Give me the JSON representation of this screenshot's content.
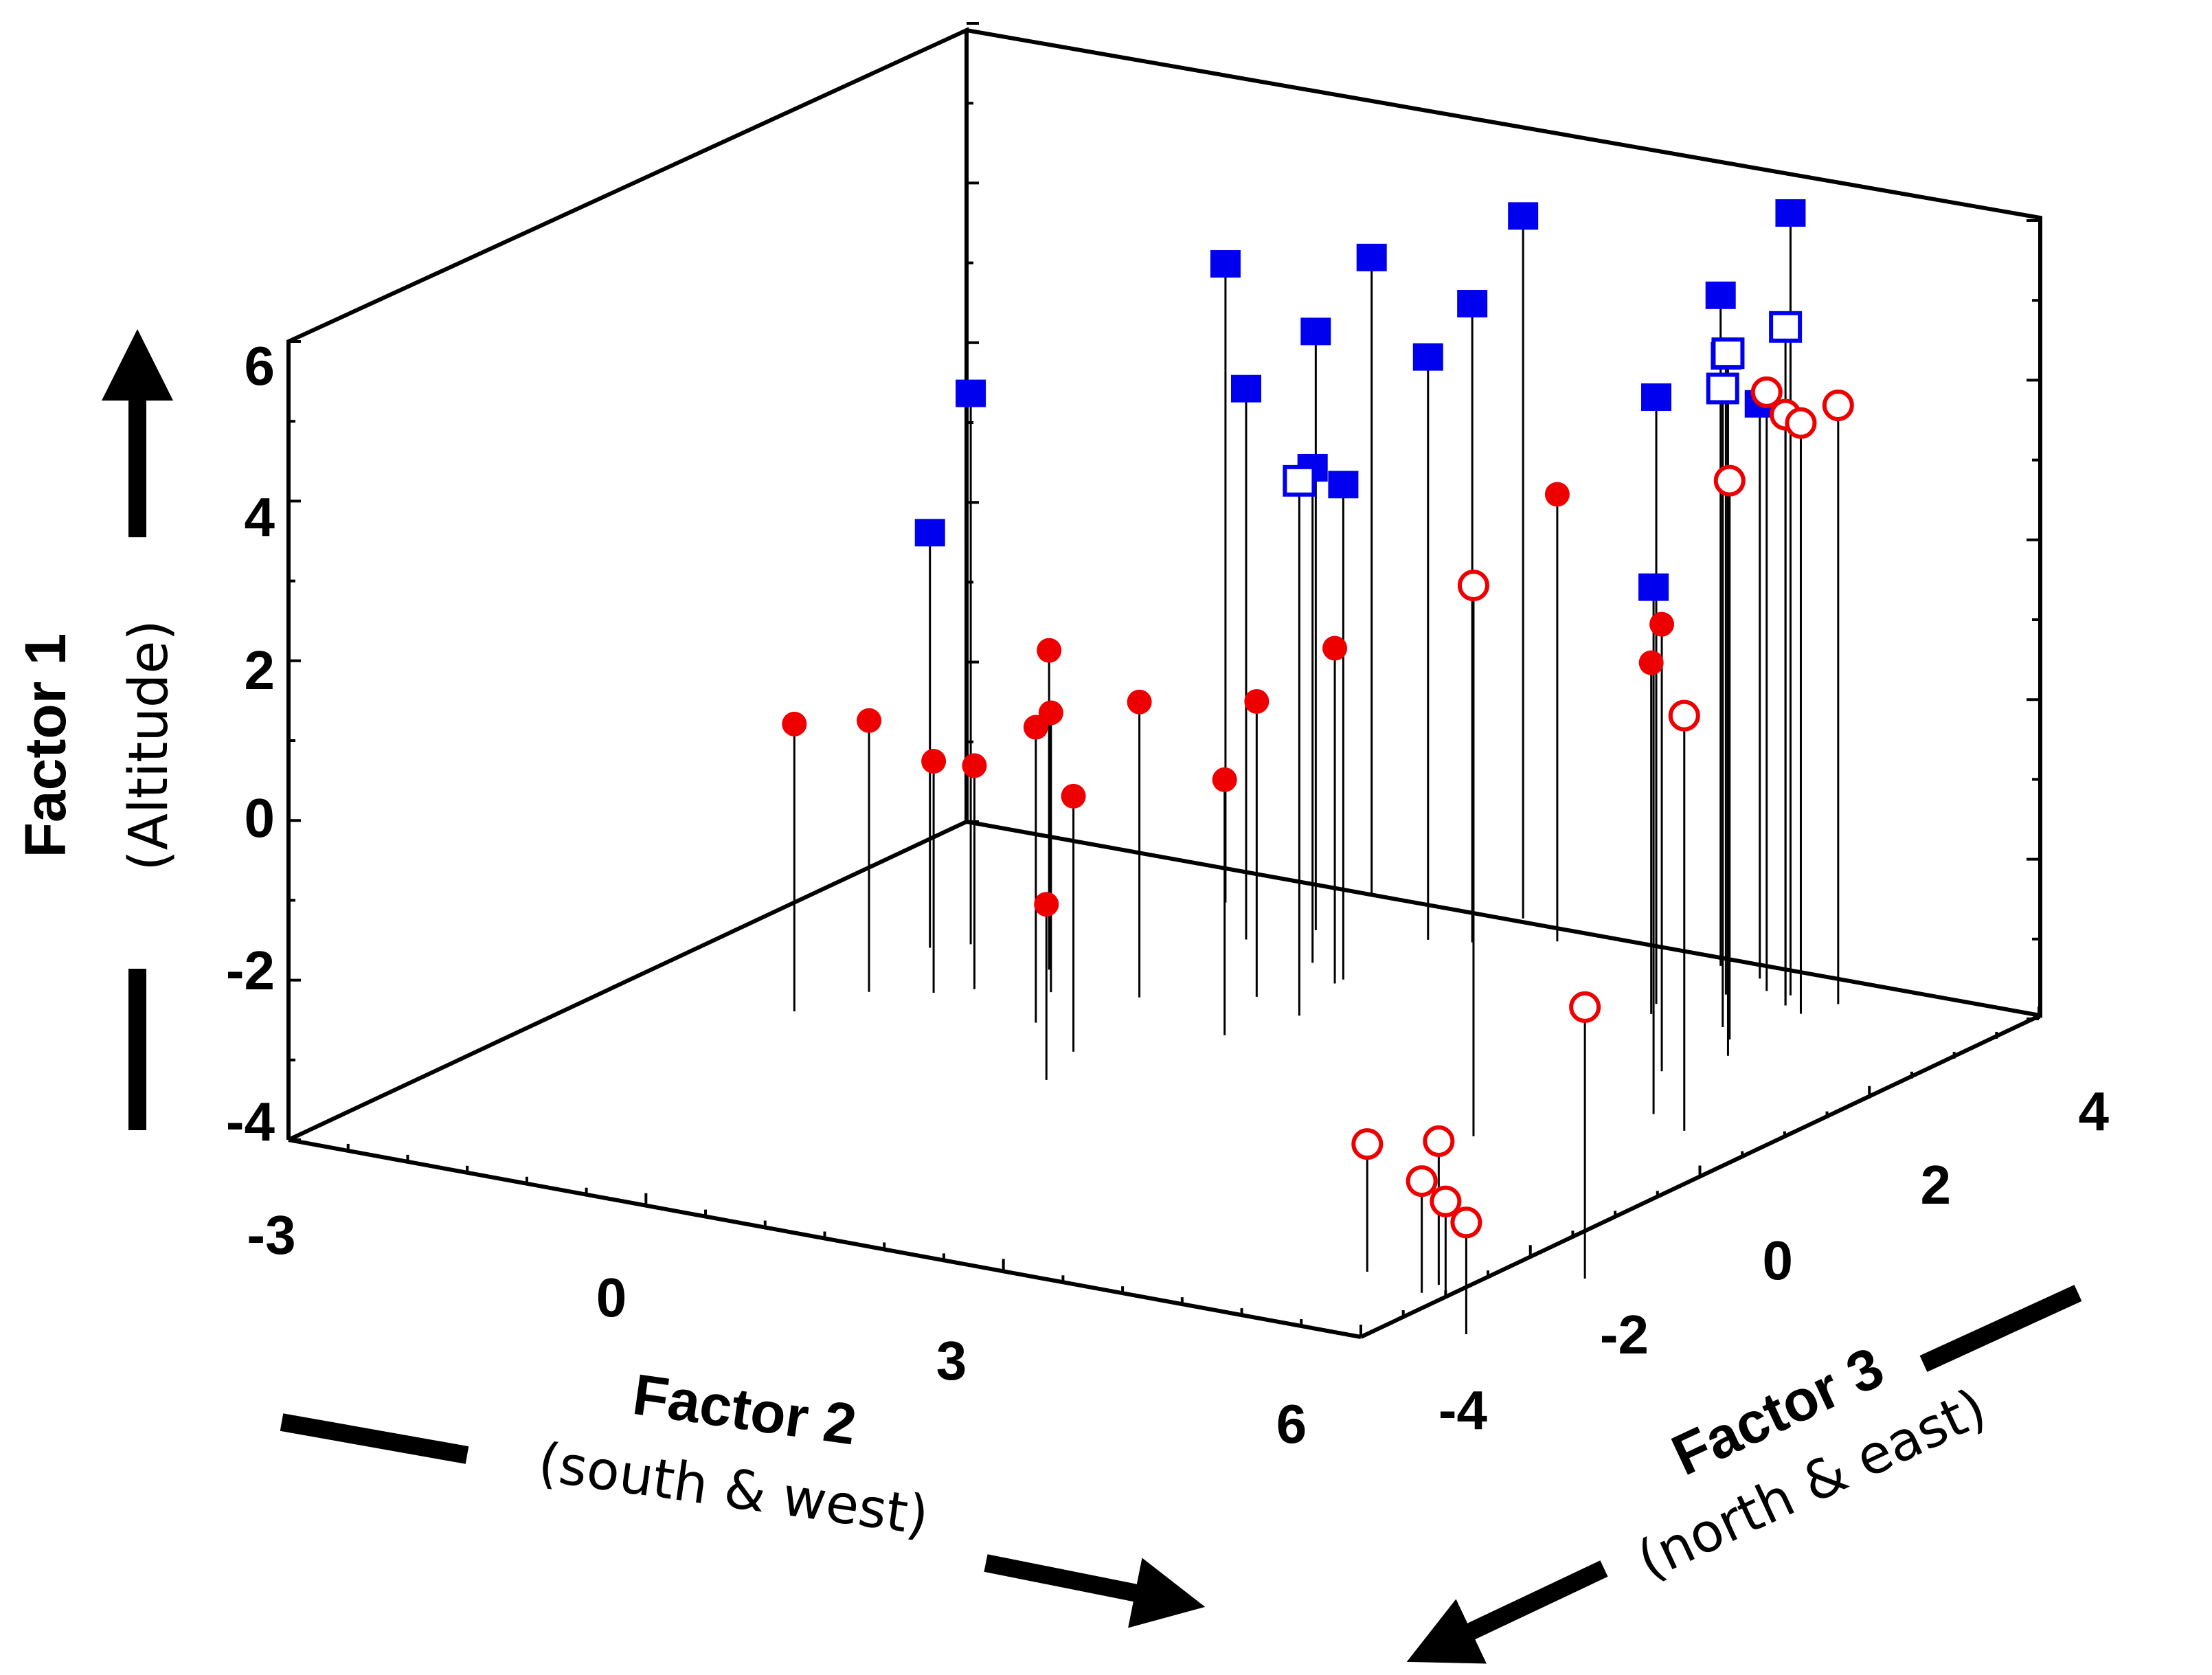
{
  "chart_data": {
    "type": "scatter3d",
    "z_axis": {
      "title": "Factor 1",
      "subtitle": "(Altitude)",
      "ticks": [
        "6",
        "4",
        "2",
        "0",
        "-2",
        "-4"
      ],
      "values": [
        6,
        4,
        2,
        0,
        -2,
        -4
      ],
      "range": [
        -4,
        6
      ]
    },
    "x_axis": {
      "title": "Factor 2",
      "subtitle": "(south & west)",
      "ticks": [
        "-3",
        "0",
        "3",
        "6"
      ],
      "values": [
        -3,
        0,
        3,
        6
      ],
      "range": [
        -3,
        6
      ]
    },
    "y_axis": {
      "title": "Factor 3",
      "subtitle": "(north & east)",
      "ticks": [
        "-4",
        "-2",
        "0",
        "2",
        "4"
      ],
      "values": [
        -4,
        -2,
        0,
        2,
        4
      ],
      "range": [
        -4,
        4
      ]
    },
    "colors": {
      "blue": "#0000ee",
      "red": "#ee0000",
      "axis": "#000000"
    },
    "series": [
      {
        "name": "blue filled squares",
        "marker": "square-filled",
        "color": "#0000ee",
        "points": [
          [
            -1.6,
            1.6,
            1.2
          ],
          [
            -1.4,
            1.8,
            2.9
          ],
          [
            -0.4,
            3.4,
            4.0
          ],
          [
            0.4,
            4.0,
            4.0
          ],
          [
            0.2,
            2.8,
            2.9
          ],
          [
            0.5,
            3.2,
            3.5
          ],
          [
            0.9,
            2.6,
            2.2
          ],
          [
            1.3,
            2.4,
            2.2
          ],
          [
            1.3,
            3.4,
            3.3
          ],
          [
            1.6,
            4.1,
            4.8
          ],
          [
            1.6,
            3.5,
            4.0
          ],
          [
            3.8,
            3.8,
            3.2
          ],
          [
            3.4,
            3.9,
            4.4
          ],
          [
            3.5,
            3.0,
            3.6
          ],
          [
            3.8,
            3.4,
            4.0
          ],
          [
            4.9,
            1.0,
            2.6
          ],
          [
            4.2,
            3.6,
            5.8
          ]
        ]
      },
      {
        "name": "blue open squares",
        "marker": "square-open",
        "color": "#0000ee",
        "points": [
          [
            1.5,
            1.6,
            2.7
          ],
          [
            4.2,
            2.8,
            4.0
          ],
          [
            4.3,
            3.4,
            4.5
          ],
          [
            4.6,
            2.3,
            4.8
          ]
        ]
      },
      {
        "name": "red filled circles",
        "marker": "circle-filled",
        "color": "#ee0000",
        "points": [
          [
            -1.6,
            0.0,
            -0.4
          ],
          [
            -1.4,
            0.6,
            -0.6
          ],
          [
            -1.0,
            0.8,
            -1.1
          ],
          [
            -0.8,
            1.0,
            -1.2
          ],
          [
            -0.6,
            1.6,
            0.0
          ],
          [
            -0.3,
            1.2,
            -0.5
          ],
          [
            0.0,
            0.6,
            -0.3
          ],
          [
            0.3,
            1.4,
            -0.3
          ],
          [
            0.6,
            0.2,
            -0.8
          ],
          [
            0.8,
            -0.4,
            -1.8
          ],
          [
            1.0,
            1.8,
            -0.3
          ],
          [
            1.3,
            1.0,
            -0.8
          ],
          [
            1.3,
            2.3,
            0.2
          ],
          [
            2.1,
            3.8,
            1.6
          ],
          [
            3.6,
            2.8,
            0.4
          ],
          [
            4.4,
            1.8,
            1.6
          ]
        ]
      },
      {
        "name": "red open circles",
        "marker": "circle-open",
        "color": "#ee0000",
        "points": [
          [
            4.1,
            0.0,
            2.9
          ],
          [
            4.0,
            3.6,
            3.5
          ],
          [
            4.3,
            3.4,
            3.4
          ],
          [
            4.4,
            2.6,
            3.0
          ],
          [
            4.5,
            3.3,
            3.4
          ],
          [
            4.6,
            3.6,
            3.5
          ],
          [
            5.3,
            0.8,
            1.2
          ],
          [
            5.2,
            -2.8,
            -2.4
          ],
          [
            5.8,
            -2.8,
            -2.2
          ],
          [
            5.8,
            -3.0,
            -2.6
          ],
          [
            6.0,
            -3.0,
            -2.8
          ],
          [
            6.6,
            -2.2,
            -0.6
          ],
          [
            6.6,
            -3.6,
            -2.6
          ]
        ]
      }
    ]
  }
}
